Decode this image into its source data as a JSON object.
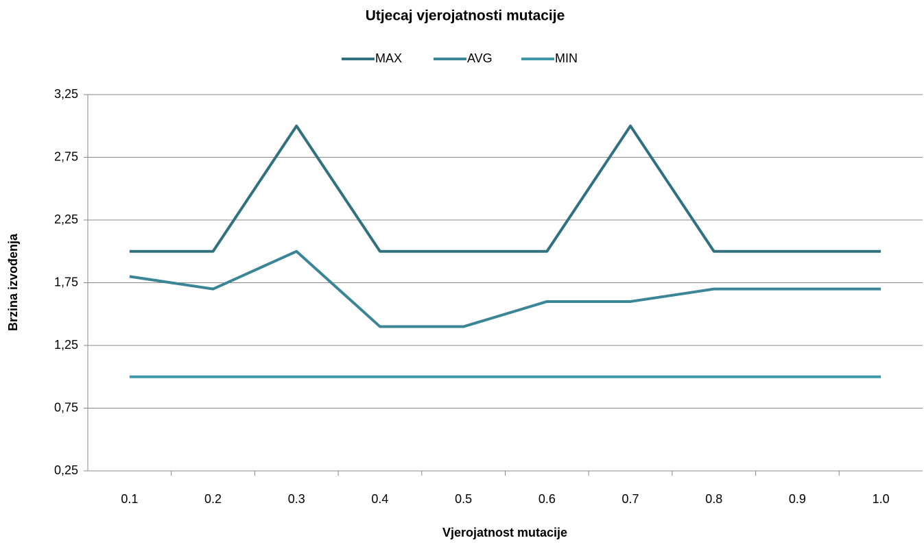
{
  "chart_data": {
    "type": "line",
    "title": "Utjecaj vjerojatnosti mutacije",
    "x_label": "Vjerojatnost mutacije",
    "y_label": "Brzina izvođenja",
    "categories": [
      "0.1",
      "0.2",
      "0.3",
      "0.4",
      "0.5",
      "0.6",
      "0.7",
      "0.8",
      "0.9",
      "1.0"
    ],
    "series": [
      {
        "name": "MAX",
        "color": "#31707f",
        "values": [
          2,
          2,
          3,
          2,
          2,
          2,
          3,
          2,
          2,
          2
        ]
      },
      {
        "name": "AVG",
        "color": "#3a8596",
        "values": [
          1.8,
          1.7,
          2.0,
          1.4,
          1.4,
          1.6,
          1.6,
          1.7,
          1.7,
          1.7
        ]
      },
      {
        "name": "MIN",
        "color": "#3f98aa",
        "values": [
          1,
          1,
          1,
          1,
          1,
          1,
          1,
          1,
          1,
          1
        ]
      }
    ],
    "ylim": [
      0.25,
      3.25
    ],
    "yticks": [
      {
        "value": 0.25,
        "label": "0,25"
      },
      {
        "value": 0.75,
        "label": "0,75"
      },
      {
        "value": 1.25,
        "label": "1,25"
      },
      {
        "value": 1.75,
        "label": "1,75"
      },
      {
        "value": 2.25,
        "label": "2,25"
      },
      {
        "value": 2.75,
        "label": "2,75"
      },
      {
        "value": 3.25,
        "label": "3,25"
      }
    ],
    "grid": true,
    "legend": "top"
  }
}
